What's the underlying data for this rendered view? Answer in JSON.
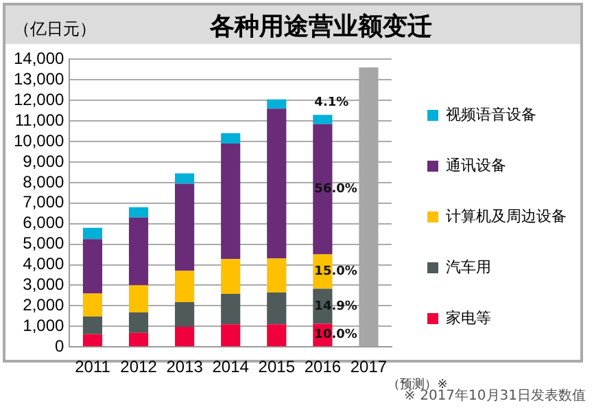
{
  "chart_data": {
    "type": "bar",
    "title": "各种用途营业额变迁",
    "ylabel": "（亿日元）",
    "categories": [
      "2011",
      "2012",
      "2013",
      "2014",
      "2015",
      "2016",
      "2017"
    ],
    "stacked": true,
    "legend": "right",
    "grid": "y",
    "ylim": [
      0,
      14000
    ],
    "yticks": [
      {
        "value": 0,
        "label": "0"
      },
      {
        "value": 1000,
        "label": "1,000"
      },
      {
        "value": 2000,
        "label": "2,000"
      },
      {
        "value": 3000,
        "label": "3,000"
      },
      {
        "value": 4000,
        "label": "4,000"
      },
      {
        "value": 5000,
        "label": "5,000"
      },
      {
        "value": 6000,
        "label": "6,000"
      },
      {
        "value": 7000,
        "label": "7,000"
      },
      {
        "value": 8000,
        "label": "8,000"
      },
      {
        "value": 9000,
        "label": "9,000"
      },
      {
        "value": 10000,
        "label": "10,000"
      },
      {
        "value": 11000,
        "label": "11,000"
      },
      {
        "value": 12000,
        "label": "12,000"
      },
      {
        "value": 13000,
        "label": "13,000"
      },
      {
        "value": 14000,
        "label": "14,000"
      }
    ],
    "series": [
      {
        "name": "家电等",
        "color": "#f0003c",
        "values": [
          620,
          680,
          980,
          1100,
          1100,
          1130,
          null
        ]
      },
      {
        "name": "汽车用",
        "color": "#4f5a5a",
        "values": [
          860,
          1000,
          1200,
          1480,
          1550,
          1700,
          null
        ]
      },
      {
        "name": "计算机及周边设备",
        "color": "#ffc000",
        "values": [
          1120,
          1320,
          1520,
          1700,
          1650,
          1670,
          null
        ]
      },
      {
        "name": "通讯设备",
        "color": "#6a2c78",
        "values": [
          2650,
          3300,
          4250,
          5620,
          7300,
          6350,
          null
        ]
      },
      {
        "name": "视频语音设备",
        "color": "#00b0d8",
        "values": [
          550,
          500,
          500,
          500,
          450,
          450,
          null
        ]
      },
      {
        "color": "#a6a6a6",
        "values": [
          null,
          null,
          null,
          null,
          null,
          null,
          13600
        ]
      }
    ],
    "annotations": [
      "（预测）※",
      "※ 2017年10月31日发表数值",
      "10.0%",
      "14.9%",
      "15.0%",
      "56.0%",
      "4.1%"
    ]
  }
}
